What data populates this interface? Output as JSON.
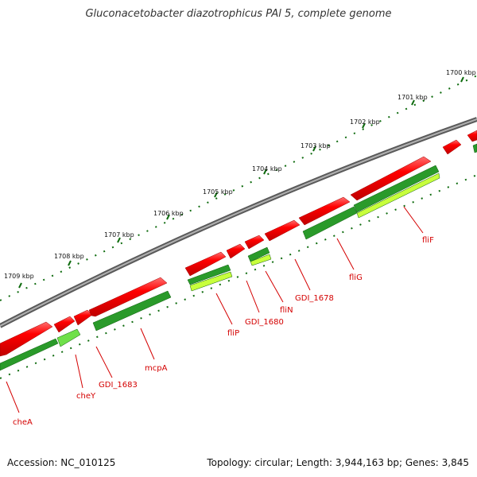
{
  "title": "Gluconacetobacter diazotrophicus PAl 5, complete genome",
  "accession": "Accession: NC_010125",
  "topology": "Topology: circular; Length: 3,944,163 bp; Genes: 3,845",
  "ruler_labels": [
    "1700 kbp",
    "1701 kbp",
    "1702 kbp",
    "1703 kbp",
    "1704 kbp",
    "1705 kbp",
    "1706 kbp",
    "1707 kbp",
    "1708 kbp",
    "1709 kbp"
  ],
  "gene_labels": [
    "fliF",
    "fliG",
    "GDI_1678",
    "fliN",
    "GDI_1680",
    "fliP",
    "mcpA",
    "GDI_1683",
    "cheY",
    "cheA"
  ],
  "colors": {
    "backbone": "#8a8a8a",
    "forward_gene": "#ff0000",
    "cds_dark": "#2a9a2a",
    "cds_light": "#6fe04a",
    "cds_yellow": "#c8ff3c",
    "ruler": "#0e6b0e",
    "label": "#d40000"
  }
}
